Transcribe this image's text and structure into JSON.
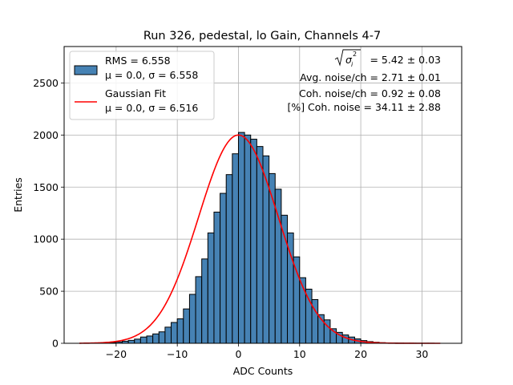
{
  "chart_data": {
    "type": "bar",
    "title": "Run 326, pedestal, lo Gain, Channels 4-7",
    "xlabel": "ADC Counts",
    "ylabel": "Entries",
    "xlim": [
      -28.5,
      36.5
    ],
    "ylim": [
      0,
      2850
    ],
    "grid": true,
    "legend_position": "upper-left",
    "xticks": [
      -20,
      -10,
      0,
      10,
      20,
      30
    ],
    "yticks": [
      0,
      500,
      1000,
      1500,
      2000,
      2500
    ],
    "xtick_labels": [
      "−20",
      "−10",
      "0",
      "10",
      "20",
      "30"
    ],
    "ytick_labels": [
      "0",
      "500",
      "1000",
      "1500",
      "2000",
      "2500"
    ],
    "bar_color": "#4682b4",
    "fit_color": "#ff0000",
    "bin_width": 1,
    "bin_edges": [
      -25,
      -24,
      -23,
      -22,
      -21,
      -20,
      -19,
      -18,
      -17,
      -16,
      -15,
      -14,
      -13,
      -12,
      -11,
      -10,
      -9,
      -8,
      -7,
      -6,
      -5,
      -4,
      -3,
      -2,
      -1,
      0,
      1,
      2,
      3,
      4,
      5,
      6,
      7,
      8,
      9,
      10,
      11,
      12,
      13,
      14,
      15,
      16,
      17,
      18,
      19,
      20,
      21,
      22,
      23,
      24,
      25,
      26,
      27,
      28,
      29,
      30,
      31,
      32
    ],
    "bin_counts": [
      1,
      2,
      3,
      5,
      8,
      13,
      20,
      28,
      40,
      60,
      70,
      90,
      110,
      155,
      200,
      235,
      330,
      470,
      640,
      810,
      1060,
      1260,
      1440,
      1620,
      1820,
      2025,
      2000,
      1960,
      1890,
      1800,
      1630,
      1480,
      1230,
      1060,
      830,
      630,
      520,
      420,
      275,
      225,
      140,
      105,
      80,
      60,
      42,
      26,
      16,
      10,
      6,
      4,
      3,
      2,
      1,
      1,
      1,
      1,
      1
    ],
    "fit": {
      "mu": 0.0,
      "sigma": 6.516,
      "amplitude": 2000,
      "x_range": [
        -26,
        33
      ]
    },
    "legend": [
      {
        "kind": "bar",
        "line1": "RMS = 6.558",
        "line2": "μ = 0.0, σ = 6.558"
      },
      {
        "kind": "line",
        "line1": "Gaussian Fit",
        "line2": "μ = 0.0, σ = 6.516"
      }
    ],
    "annotations": {
      "sqrt_value": " = 5.42 ± 0.03",
      "avg_noise": "Avg. noise/ch = 2.71 ± 0.01",
      "coh_noise": "Coh. noise/ch = 0.92 ± 0.08",
      "pct_coh_noise": "[%] Coh. noise = 34.11 ± 2.88"
    }
  }
}
